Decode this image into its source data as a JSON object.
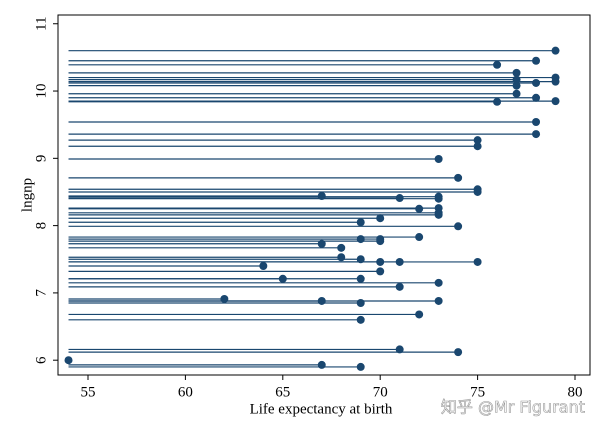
{
  "chart_data": {
    "type": "dropline",
    "xlabel": "Life expectancy at birth",
    "ylabel": "lngnp",
    "watermark": "知乎 @Mr Figurant",
    "color": "#1a476f",
    "xlim": [
      53.46,
      80.77
    ],
    "ylim": [
      5.78,
      11.13
    ],
    "xticks": [
      55,
      60,
      65,
      70,
      75,
      80
    ],
    "yticks": [
      6,
      7,
      8,
      9,
      10,
      11
    ],
    "x": [
      79,
      76,
      78,
      77,
      77,
      79,
      79,
      78,
      77,
      77,
      78,
      79,
      76,
      78,
      78,
      75,
      75,
      73,
      74,
      75,
      75,
      67,
      71,
      73,
      73,
      73,
      72,
      73,
      73,
      70,
      69,
      74,
      72,
      69,
      70,
      70,
      67,
      68,
      68,
      69,
      71,
      70,
      75,
      64,
      70,
      65,
      69,
      73,
      71,
      62,
      67,
      69,
      73,
      72,
      69,
      71,
      74,
      54,
      67,
      69
    ],
    "y": [
      10.6,
      10.39,
      10.45,
      10.27,
      10.17,
      10.2,
      10.14,
      10.12,
      10.08,
      9.96,
      9.9,
      9.85,
      9.84,
      9.54,
      9.36,
      9.27,
      9.18,
      8.99,
      8.71,
      8.54,
      8.5,
      8.44,
      8.41,
      8.43,
      8.4,
      8.26,
      8.25,
      8.19,
      8.16,
      8.11,
      8.05,
      7.99,
      7.83,
      7.8,
      7.8,
      7.77,
      7.73,
      7.67,
      7.53,
      7.5,
      7.46,
      7.46,
      7.46,
      7.4,
      7.32,
      7.21,
      7.21,
      7.15,
      7.09,
      6.91,
      6.88,
      6.85,
      6.88,
      6.68,
      6.6,
      6.16,
      6.12,
      6.0,
      5.93,
      5.9
    ]
  }
}
